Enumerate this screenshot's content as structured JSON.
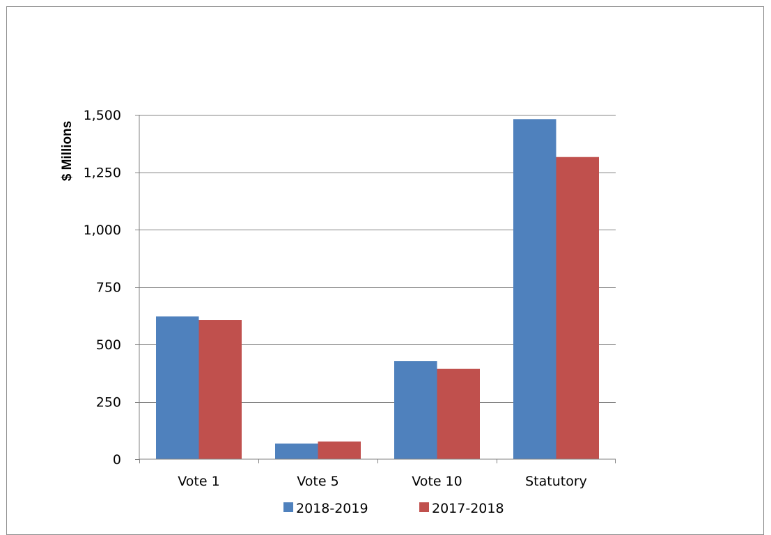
{
  "chart_data": {
    "type": "bar",
    "title": "",
    "xlabel": "",
    "ylabel": "$ Millions",
    "categories": [
      "Vote 1",
      "Vote 5",
      "Vote 10",
      "Statutory"
    ],
    "series": [
      {
        "name": "2018-2019",
        "color": "#4f81bd",
        "values": [
          622,
          68,
          427,
          1481
        ]
      },
      {
        "name": "2017-2018",
        "color": "#c0504d",
        "values": [
          606,
          77,
          394,
          1316
        ]
      }
    ],
    "ylim": [
      0,
      1500
    ],
    "yticks": [
      0,
      250,
      500,
      750,
      1000,
      1250,
      1500
    ],
    "ytick_labels": [
      "0",
      "250",
      "500",
      "750",
      "1,000",
      "1,250",
      "1,500"
    ],
    "grid": true,
    "gridline_color": "#808080",
    "legend_position": "bottom"
  }
}
